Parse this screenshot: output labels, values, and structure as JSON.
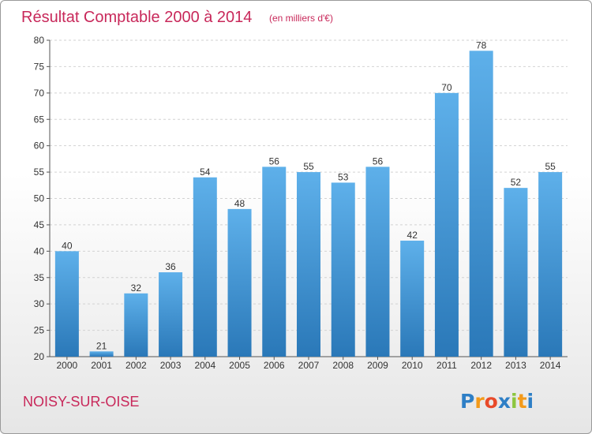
{
  "chart_data": {
    "type": "bar",
    "title": "Résultat Comptable 2000 à 2014",
    "subtitle": "(en milliers d'€)",
    "categories": [
      "2000",
      "2001",
      "2002",
      "2003",
      "2004",
      "2005",
      "2006",
      "2007",
      "2008",
      "2009",
      "2010",
      "2011",
      "2012",
      "2013",
      "2014"
    ],
    "values": [
      40,
      21,
      32,
      36,
      54,
      48,
      56,
      55,
      53,
      56,
      42,
      70,
      78,
      52,
      55
    ],
    "ylim": [
      20,
      80
    ],
    "yticks": [
      20,
      25,
      30,
      35,
      40,
      45,
      50,
      55,
      60,
      65,
      70,
      75,
      80
    ],
    "grid": true,
    "bar_color_top": "#5eb0ea",
    "bar_color_bottom": "#2a78b8"
  },
  "footer": {
    "place": "NOISY-SUR-OISE",
    "logo_letters": [
      "P",
      "r",
      "o",
      "x",
      "i",
      "t",
      "i"
    ],
    "logo_colors": [
      "#2e7fc6",
      "#f39a1a",
      "#e84a2a",
      "#2e7fc6",
      "#8cc63f",
      "#f39a1a",
      "#2e7fc6"
    ]
  }
}
